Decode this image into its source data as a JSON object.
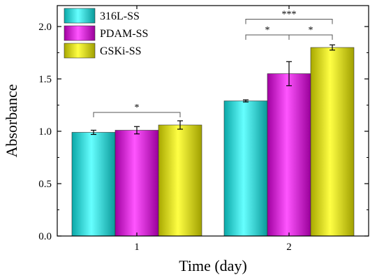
{
  "chart_data": {
    "type": "bar",
    "xlabel": "Time (day)",
    "ylabel": "Absorbance",
    "ylim": [
      0,
      2.2
    ],
    "yticks": [
      "0.0",
      "0.5",
      "1.0",
      "1.5",
      "2.0"
    ],
    "categories": [
      "1",
      "2"
    ],
    "legend_position": "top-left",
    "grid": false,
    "series": [
      {
        "name": "316L-SS",
        "color": "#22cfcf",
        "values": [
          0.99,
          1.29
        ],
        "errors": [
          0.02,
          0.01
        ]
      },
      {
        "name": "PDAM-SS",
        "color": "#d010d0",
        "values": [
          1.01,
          1.55
        ],
        "errors": [
          0.035,
          0.115
        ]
      },
      {
        "name": "GSKi-SS",
        "color": "#d8d800",
        "values": [
          1.06,
          1.8
        ],
        "errors": [
          0.04,
          0.025
        ]
      }
    ],
    "significance": [
      {
        "category": 0,
        "from": 0,
        "to": 2,
        "label": "*",
        "y": 1.18
      },
      {
        "category": 1,
        "from": 0,
        "to": 1,
        "label": "*",
        "y": 1.92
      },
      {
        "category": 1,
        "from": 1,
        "to": 2,
        "label": "*",
        "y": 1.92
      },
      {
        "category": 1,
        "from": 0,
        "to": 2,
        "label": "***",
        "y": 2.07
      }
    ]
  }
}
